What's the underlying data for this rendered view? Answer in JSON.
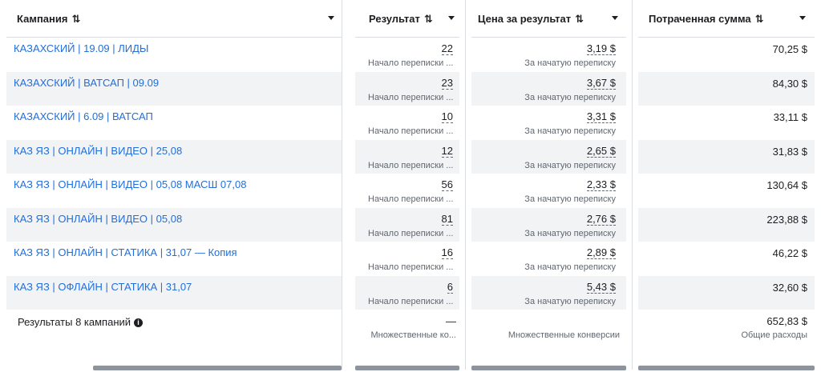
{
  "columns": {
    "campaign": {
      "title": "Кампания",
      "sort_icon": "⇅"
    },
    "result": {
      "title": "Результат",
      "sort_icon": "⇅"
    },
    "cost": {
      "title": "Цена за результат",
      "sort_icon": "⇅"
    },
    "spent": {
      "title": "Потраченная сумма",
      "sort_icon": "⇅"
    }
  },
  "rows": [
    {
      "campaign": "КАЗАХСКИЙ | 19.09 | ЛИДЫ",
      "result": "22",
      "result_sub": "Начало переписки ...",
      "cost": "3,19 $",
      "cost_sub": "За начатую переписку",
      "spent": "70,25 $"
    },
    {
      "campaign": "КАЗАХСКИЙ | ВАТСАП | 09.09",
      "result": "23",
      "result_sub": "Начало переписки ...",
      "cost": "3,67 $",
      "cost_sub": "За начатую переписку",
      "spent": "84,30 $"
    },
    {
      "campaign": "КАЗАХСКИЙ | 6.09 | ВАТСАП",
      "result": "10",
      "result_sub": "Начало переписки ...",
      "cost": "3,31 $",
      "cost_sub": "За начатую переписку",
      "spent": "33,11 $"
    },
    {
      "campaign": "КАЗ ЯЗ | ОНЛАЙН | ВИДЕО | 25,08",
      "result": "12",
      "result_sub": "Начало переписки ...",
      "cost": "2,65 $",
      "cost_sub": "За начатую переписку",
      "spent": "31,83 $"
    },
    {
      "campaign": "КАЗ ЯЗ | ОНЛАЙН | ВИДЕО | 05,08 МАСШ 07,08",
      "result": "56",
      "result_sub": "Начало переписки ...",
      "cost": "2,33 $",
      "cost_sub": "За начатую переписку",
      "spent": "130,64 $"
    },
    {
      "campaign": "КАЗ ЯЗ | ОНЛАЙН | ВИДЕО | 05,08",
      "result": "81",
      "result_sub": "Начало переписки ...",
      "cost": "2,76 $",
      "cost_sub": "За начатую переписку",
      "spent": "223,88 $"
    },
    {
      "campaign": "КАЗ ЯЗ | ОНЛАЙН | СТАТИКА | 31,07 — Копия",
      "result": "16",
      "result_sub": "Начало переписки ...",
      "cost": "2,89 $",
      "cost_sub": "За начатую переписку",
      "spent": "46,22 $"
    },
    {
      "campaign": "КАЗ ЯЗ | ОФЛАЙН | СТАТИКА | 31,07",
      "result": "6",
      "result_sub": "Начало переписки ...",
      "cost": "5,43 $",
      "cost_sub": "За начатую переписку",
      "spent": "32,60 $"
    }
  ],
  "summary": {
    "label": "Результаты 8 кампаний",
    "info_icon": "i",
    "result": "—",
    "result_sub": "Множественные ко...",
    "cost_sub": "Множественные конверсии",
    "spent": "652,83 $",
    "spent_sub": "Общие расходы"
  }
}
